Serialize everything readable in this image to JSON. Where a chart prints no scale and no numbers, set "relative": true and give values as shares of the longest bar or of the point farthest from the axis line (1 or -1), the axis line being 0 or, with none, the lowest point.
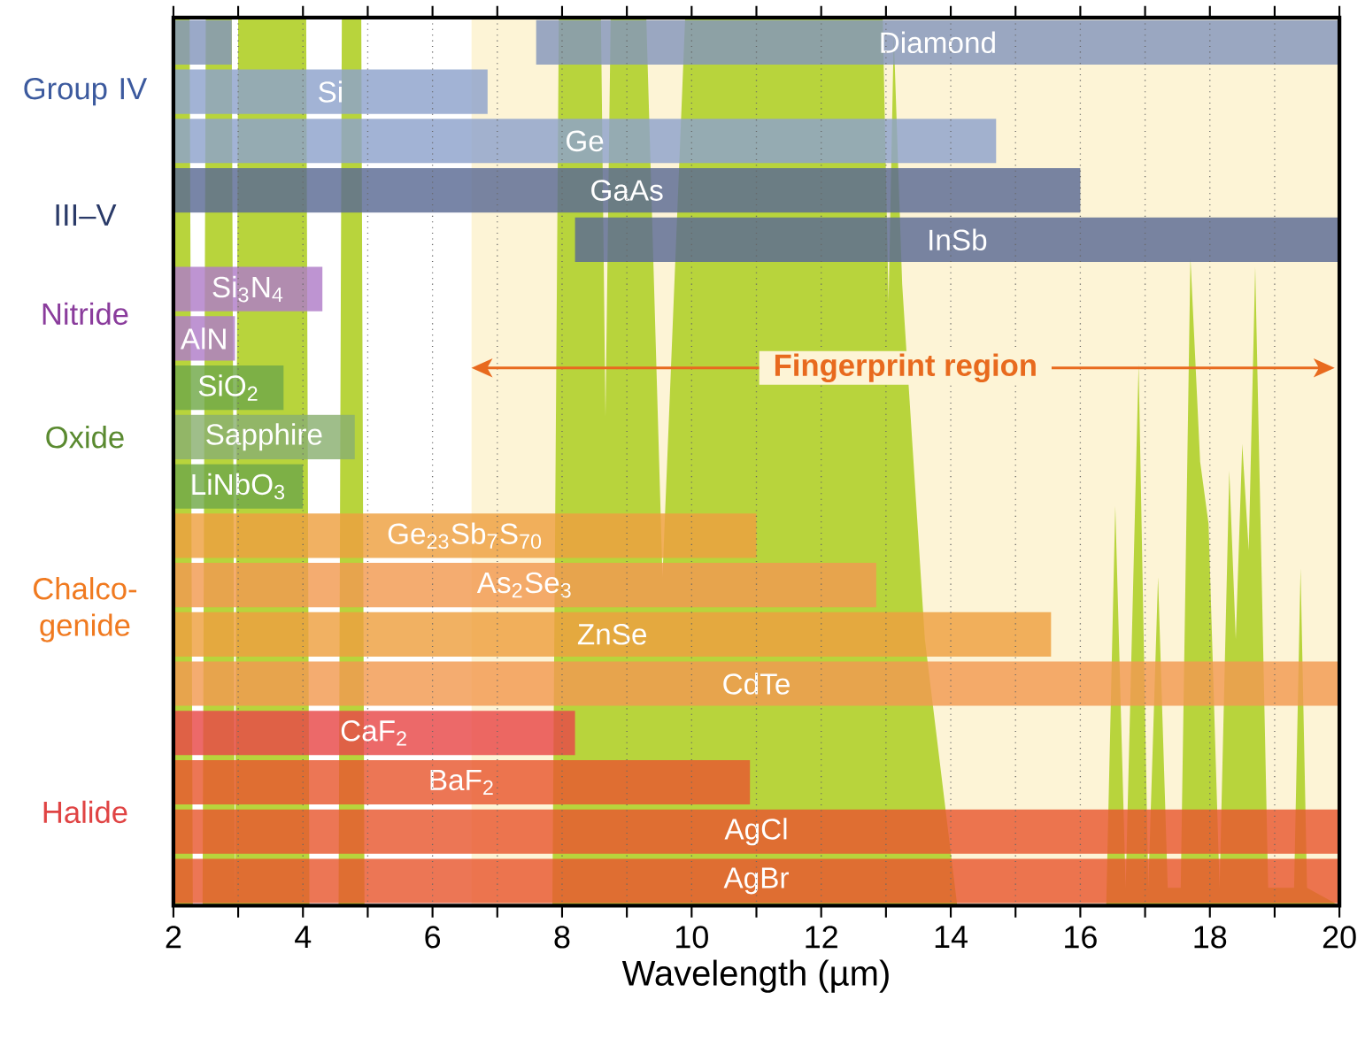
{
  "chart_data": [
    {
      "type": "area",
      "relative": true,
      "color": "#b8d43c",
      "xlim": [
        2,
        20
      ],
      "tick_labels": false,
      "x": [
        2.0,
        2.25,
        2.3,
        2.45,
        2.5,
        2.9,
        2.95,
        3.0,
        4.05,
        4.1,
        4.55,
        4.6,
        4.9,
        4.95,
        7.85,
        7.95,
        8.6,
        8.67,
        8.75,
        9.3,
        9.55,
        9.9,
        12.95,
        13.04,
        13.12,
        13.25,
        13.6,
        14.1,
        16.4,
        16.54,
        16.7,
        16.9,
        17.05,
        17.2,
        17.35,
        17.55,
        17.7,
        17.85,
        17.98,
        18.15,
        18.3,
        18.4,
        18.5,
        18.6,
        18.7,
        18.9,
        19.3,
        19.4,
        19.5,
        20.0
      ],
      "values": [
        1,
        1,
        0,
        0,
        1,
        1,
        0,
        1,
        1,
        0,
        0,
        1,
        1,
        0,
        0,
        1,
        1,
        0.55,
        1,
        1,
        0.37,
        1,
        1,
        0.68,
        0.98,
        0.7,
        0.3,
        0,
        0,
        0.45,
        0.02,
        0.61,
        0.02,
        0.37,
        0.02,
        0.02,
        0.73,
        0.5,
        0.43,
        0.02,
        0.49,
        0.3,
        0.52,
        0.4,
        0.72,
        0.02,
        0.02,
        0.38,
        0.02,
        0
      ]
    },
    {
      "type": "bar",
      "orientation": "horizontal",
      "xlabel": "Wavelength (µm)",
      "categories": [
        "Diamond",
        "Si",
        "Ge",
        "GaAs",
        "InSb",
        "Si$_{3}$N$_{4}$",
        "AlN",
        "SiO$_{2}$",
        "Sapphire",
        "LiNbO$_{3}$",
        "Ge$_{23}$Sb$_{7}$S$_{70}$",
        "As$_{2}$Se$_{3}$",
        "ZnSe",
        "CdTe",
        "CaF$_{2}$",
        "BaF$_{2}$",
        "AgCl",
        "AgBr"
      ],
      "series": [
        {
          "base": [
            7.6,
            2,
            2,
            2,
            8.2,
            2,
            2,
            2,
            2,
            2,
            2,
            2,
            2,
            2,
            2,
            2,
            2,
            2
          ],
          "values": [
            12.4,
            4.85,
            12.7,
            14.0,
            11.8,
            2.3,
            0.95,
            1.7,
            2.8,
            2.0,
            9.0,
            10.85,
            13.55,
            18,
            6.2,
            8.9,
            18,
            18
          ],
          "colors": [
            "#8496bc",
            "#8ea2cc",
            "#8ea2cc",
            "#5a6a94",
            "#5a6a94",
            "#b07cc8",
            "#b07cc8",
            "#70a848",
            "#8ab070",
            "#70a848",
            "#eea040",
            "#f29a50",
            "#eea040",
            "#f29a50",
            "#e84848",
            "#e85830",
            "#e85830",
            "#e85830"
          ]
        },
        {
          "base": [
            2,
            null,
            null,
            null,
            null,
            null,
            null,
            null,
            null,
            null,
            null,
            null,
            null,
            null,
            null,
            null,
            null,
            null
          ],
          "values": [
            0.9,
            null,
            null,
            null,
            null,
            null,
            null,
            null,
            null,
            null,
            null,
            null,
            null,
            null,
            null,
            null,
            null,
            null
          ],
          "color": "#8496bc"
        }
      ],
      "xlim": [
        2,
        20
      ],
      "xticks": [
        2,
        {
          "value": 3,
          "label": null
        },
        4,
        {
          "value": 5,
          "label": null
        },
        6,
        {
          "value": 7,
          "label": null
        },
        8,
        {
          "value": 9,
          "label": null
        },
        10,
        {
          "value": 11,
          "label": null
        },
        12,
        {
          "value": 13,
          "label": null
        },
        14,
        {
          "value": 15,
          "label": null
        },
        16,
        {
          "value": 17,
          "label": null
        },
        18,
        {
          "value": 19,
          "label": null
        },
        20
      ],
      "bands": [
        {
          "axis": "x",
          "from": 6.6,
          "to": 20,
          "label": "Fingerprint region",
          "color": "#fdf4d6"
        }
      ],
      "annotations": [
        "Group IV",
        "III–V",
        "Nitride",
        "Oxide",
        "Chalco-genide",
        "Halide"
      ],
      "grid": "x",
      "tick_labels": "x"
    }
  ]
}
